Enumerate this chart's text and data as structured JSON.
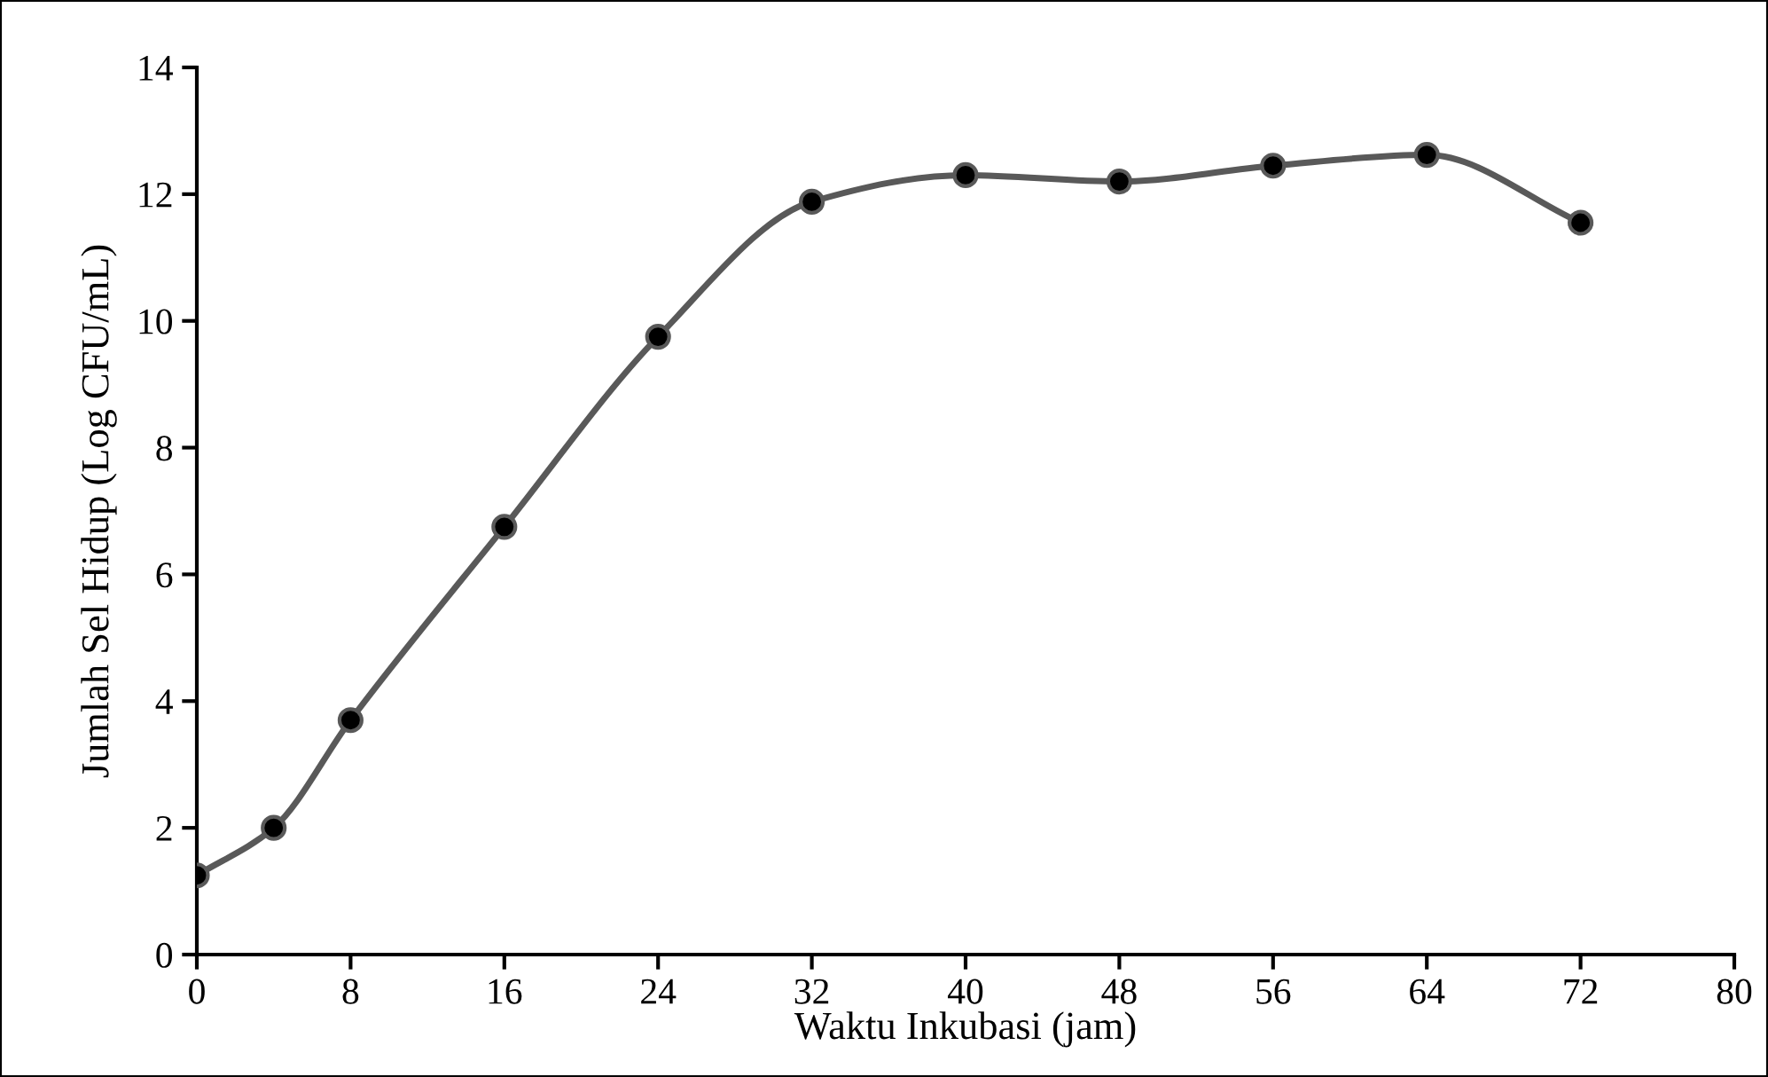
{
  "chart_data": {
    "type": "line",
    "xlabel": "Waktu Inkubasi (jam)",
    "ylabel": "Jumlah Sel Hidup (Log CFU/mL)",
    "x": [
      0,
      4,
      8,
      16,
      24,
      32,
      40,
      48,
      56,
      64,
      72
    ],
    "series": [
      {
        "color": "#595959",
        "values": [
          1.25,
          2.0,
          3.7,
          6.75,
          9.75,
          11.88,
          12.3,
          12.2,
          12.45,
          12.62,
          11.55
        ]
      }
    ],
    "marker": "circle",
    "line_style": "solid",
    "xlim": [
      0,
      80
    ],
    "xticks": [
      0,
      8,
      16,
      24,
      32,
      40,
      48,
      56,
      64,
      72,
      80
    ],
    "ylim": [
      0,
      14
    ],
    "yticks": [
      0,
      2,
      4,
      6,
      8,
      10,
      12,
      14
    ],
    "grid": false,
    "legend": false
  }
}
